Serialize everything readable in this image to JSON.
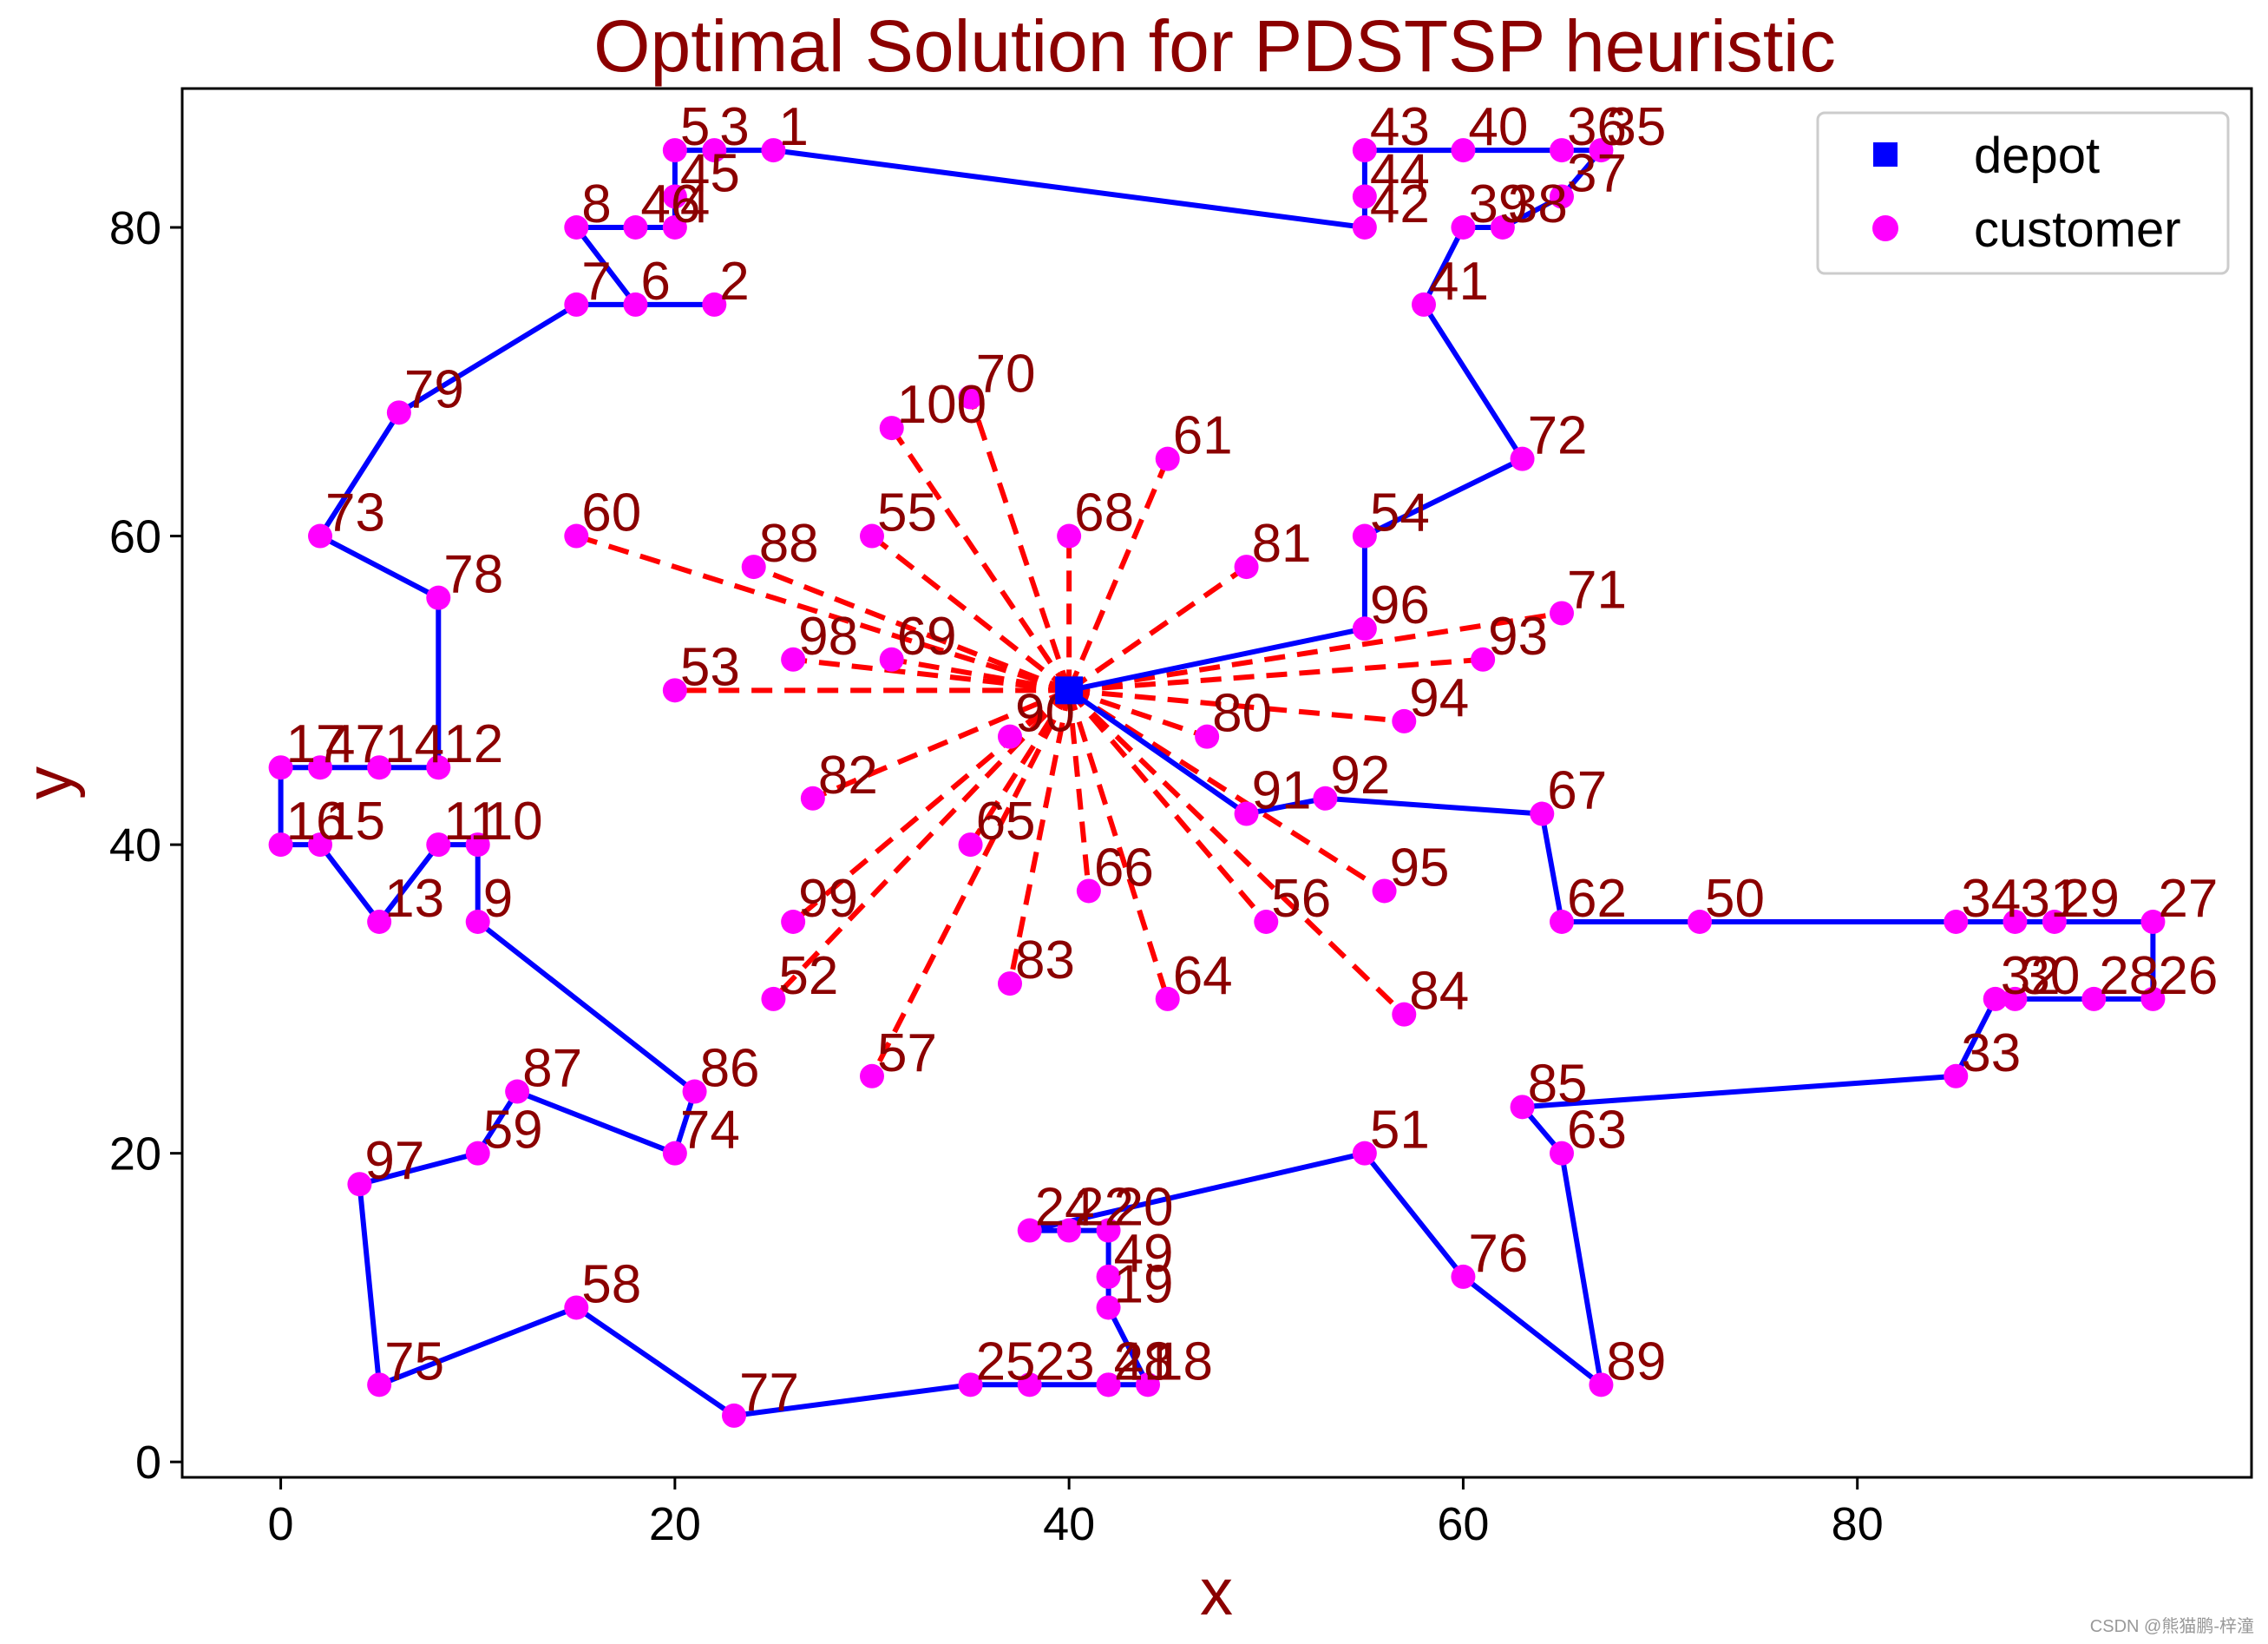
{
  "chart_data": {
    "type": "scatter",
    "title": "Optimal Solution for PDSTSP heuristic",
    "xlabel": "x",
    "ylabel": "y",
    "xlim": [
      -5,
      100
    ],
    "ylim": [
      -1,
      89
    ],
    "xticks": [
      0,
      20,
      40,
      60,
      80
    ],
    "yticks": [
      0,
      20,
      40,
      60,
      80
    ],
    "legend_position": "top-right",
    "legend": [
      {
        "label": "depot",
        "color": "#0000ff",
        "marker": "square"
      },
      {
        "label": "customer",
        "color": "#ff00ff",
        "marker": "circle"
      }
    ],
    "depot": {
      "x": 40,
      "y": 50
    },
    "customers": [
      {
        "id": "1",
        "x": 25,
        "y": 85
      },
      {
        "id": "2",
        "x": 22,
        "y": 75
      },
      {
        "id": "3",
        "x": 22,
        "y": 85
      },
      {
        "id": "4",
        "x": 20,
        "y": 80
      },
      {
        "id": "5",
        "x": 20,
        "y": 85
      },
      {
        "id": "6",
        "x": 18,
        "y": 75
      },
      {
        "id": "7",
        "x": 15,
        "y": 75
      },
      {
        "id": "8",
        "x": 15,
        "y": 80
      },
      {
        "id": "9",
        "x": 10,
        "y": 35
      },
      {
        "id": "10",
        "x": 10,
        "y": 40
      },
      {
        "id": "11",
        "x": 8,
        "y": 40
      },
      {
        "id": "12",
        "x": 8,
        "y": 45
      },
      {
        "id": "13",
        "x": 5,
        "y": 35
      },
      {
        "id": "14",
        "x": 5,
        "y": 45
      },
      {
        "id": "15",
        "x": 2,
        "y": 40
      },
      {
        "id": "16",
        "x": 0,
        "y": 40
      },
      {
        "id": "17",
        "x": 0,
        "y": 45
      },
      {
        "id": "18",
        "x": 44,
        "y": 5
      },
      {
        "id": "19",
        "x": 42,
        "y": 10
      },
      {
        "id": "20",
        "x": 42,
        "y": 15
      },
      {
        "id": "21",
        "x": 42,
        "y": 5
      },
      {
        "id": "22",
        "x": 40,
        "y": 15
      },
      {
        "id": "23",
        "x": 38,
        "y": 5
      },
      {
        "id": "24",
        "x": 38,
        "y": 15
      },
      {
        "id": "25",
        "x": 35,
        "y": 5
      },
      {
        "id": "26",
        "x": 95,
        "y": 30
      },
      {
        "id": "27",
        "x": 95,
        "y": 35
      },
      {
        "id": "28",
        "x": 92,
        "y": 30
      },
      {
        "id": "29",
        "x": 90,
        "y": 35
      },
      {
        "id": "30",
        "x": 88,
        "y": 30
      },
      {
        "id": "31",
        "x": 88,
        "y": 35
      },
      {
        "id": "32",
        "x": 87,
        "y": 30
      },
      {
        "id": "33",
        "x": 85,
        "y": 25
      },
      {
        "id": "34",
        "x": 85,
        "y": 35
      },
      {
        "id": "35",
        "x": 67,
        "y": 85
      },
      {
        "id": "36",
        "x": 65,
        "y": 85
      },
      {
        "id": "37",
        "x": 65,
        "y": 82
      },
      {
        "id": "38",
        "x": 62,
        "y": 80
      },
      {
        "id": "39",
        "x": 60,
        "y": 80
      },
      {
        "id": "40",
        "x": 60,
        "y": 85
      },
      {
        "id": "41",
        "x": 58,
        "y": 75
      },
      {
        "id": "42",
        "x": 55,
        "y": 80
      },
      {
        "id": "43",
        "x": 55,
        "y": 85
      },
      {
        "id": "44",
        "x": 55,
        "y": 82
      },
      {
        "id": "45",
        "x": 20,
        "y": 82
      },
      {
        "id": "46",
        "x": 18,
        "y": 80
      },
      {
        "id": "47",
        "x": 2,
        "y": 45
      },
      {
        "id": "48",
        "x": 42,
        "y": 5
      },
      {
        "id": "49",
        "x": 42,
        "y": 12
      },
      {
        "id": "50",
        "x": 72,
        "y": 35
      },
      {
        "id": "51",
        "x": 55,
        "y": 20
      },
      {
        "id": "52",
        "x": 25,
        "y": 30
      },
      {
        "id": "53",
        "x": 20,
        "y": 50
      },
      {
        "id": "54",
        "x": 55,
        "y": 60
      },
      {
        "id": "55",
        "x": 30,
        "y": 60
      },
      {
        "id": "56",
        "x": 50,
        "y": 35
      },
      {
        "id": "57",
        "x": 30,
        "y": 25
      },
      {
        "id": "58",
        "x": 15,
        "y": 10
      },
      {
        "id": "59",
        "x": 10,
        "y": 20
      },
      {
        "id": "60",
        "x": 15,
        "y": 60
      },
      {
        "id": "61",
        "x": 45,
        "y": 65
      },
      {
        "id": "62",
        "x": 65,
        "y": 35
      },
      {
        "id": "63",
        "x": 65,
        "y": 20
      },
      {
        "id": "64",
        "x": 45,
        "y": 30
      },
      {
        "id": "65",
        "x": 35,
        "y": 40
      },
      {
        "id": "66",
        "x": 41,
        "y": 37
      },
      {
        "id": "67",
        "x": 64,
        "y": 42
      },
      {
        "id": "68",
        "x": 40,
        "y": 60
      },
      {
        "id": "69",
        "x": 31,
        "y": 52
      },
      {
        "id": "70",
        "x": 35,
        "y": 69
      },
      {
        "id": "71",
        "x": 65,
        "y": 55
      },
      {
        "id": "72",
        "x": 63,
        "y": 65
      },
      {
        "id": "73",
        "x": 2,
        "y": 60
      },
      {
        "id": "74",
        "x": 20,
        "y": 20
      },
      {
        "id": "75",
        "x": 5,
        "y": 5
      },
      {
        "id": "76",
        "x": 60,
        "y": 12
      },
      {
        "id": "77",
        "x": 23,
        "y": 3
      },
      {
        "id": "78",
        "x": 8,
        "y": 56
      },
      {
        "id": "79",
        "x": 6,
        "y": 68
      },
      {
        "id": "80",
        "x": 47,
        "y": 47
      },
      {
        "id": "81",
        "x": 49,
        "y": 58
      },
      {
        "id": "82",
        "x": 27,
        "y": 43
      },
      {
        "id": "83",
        "x": 37,
        "y": 31
      },
      {
        "id": "84",
        "x": 57,
        "y": 29
      },
      {
        "id": "85",
        "x": 63,
        "y": 23
      },
      {
        "id": "86",
        "x": 21,
        "y": 24
      },
      {
        "id": "87",
        "x": 12,
        "y": 24
      },
      {
        "id": "88",
        "x": 24,
        "y": 58
      },
      {
        "id": "89",
        "x": 67,
        "y": 5
      },
      {
        "id": "90",
        "x": 37,
        "y": 47
      },
      {
        "id": "91",
        "x": 49,
        "y": 42
      },
      {
        "id": "92",
        "x": 53,
        "y": 43
      },
      {
        "id": "93",
        "x": 61,
        "y": 52
      },
      {
        "id": "94",
        "x": 57,
        "y": 48
      },
      {
        "id": "95",
        "x": 56,
        "y": 37
      },
      {
        "id": "96",
        "x": 55,
        "y": 54
      },
      {
        "id": "97",
        "x": 4,
        "y": 18
      },
      {
        "id": "98",
        "x": 26,
        "y": 52
      },
      {
        "id": "99",
        "x": 26,
        "y": 35
      },
      {
        "id": "100",
        "x": 31,
        "y": 67
      }
    ],
    "truck_route": [
      "depot",
      "96",
      "54",
      "72",
      "41",
      "39",
      "38",
      "37",
      "35",
      "36",
      "40",
      "43",
      "44",
      "42",
      "1",
      "3",
      "5",
      "45",
      "4",
      "46",
      "8",
      "6",
      "2",
      "7",
      "79",
      "73",
      "78",
      "12",
      "14",
      "47",
      "17",
      "16",
      "15",
      "13",
      "11",
      "10",
      "9",
      "86",
      "74",
      "87",
      "59",
      "97",
      "75",
      "58",
      "77",
      "25",
      "23",
      "21",
      "48",
      "18",
      "19",
      "49",
      "20",
      "22",
      "24",
      "51",
      "76",
      "89",
      "63",
      "85",
      "33",
      "32",
      "30",
      "28",
      "26",
      "27",
      "29",
      "31",
      "34",
      "50",
      "62",
      "67",
      "92",
      "91",
      "depot"
    ],
    "drone_customers": [
      "60",
      "88",
      "55",
      "100",
      "70",
      "68",
      "61",
      "81",
      "71",
      "93",
      "94",
      "80",
      "95",
      "84",
      "56",
      "64",
      "66",
      "83",
      "57",
      "52",
      "99",
      "65",
      "82",
      "53",
      "98",
      "69",
      "90"
    ],
    "series": [
      {
        "name": "depot",
        "color": "#0000ff"
      },
      {
        "name": "customer",
        "color": "#ff00ff"
      }
    ]
  },
  "watermark": "CSDN @熊猫鹏-梓潼"
}
